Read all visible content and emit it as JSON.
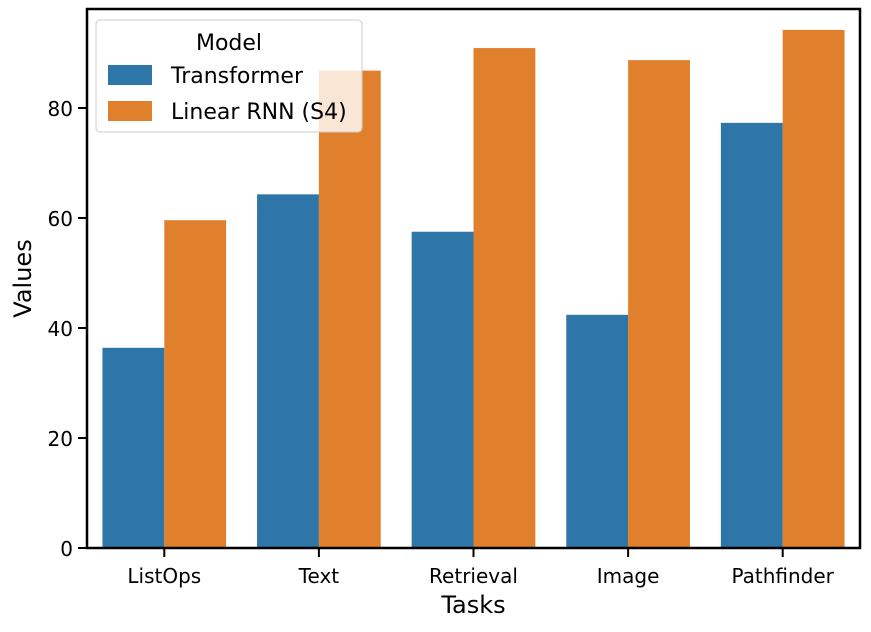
{
  "chart_data": {
    "type": "bar",
    "title": "",
    "xlabel": "Tasks",
    "ylabel": "Values",
    "categories": [
      "ListOps",
      "Text",
      "Retrieval",
      "Image",
      "Pathfinder"
    ],
    "ylim": [
      0,
      98
    ],
    "yticks": [
      0,
      20,
      40,
      60,
      80
    ],
    "grid": false,
    "legend": {
      "title": "Model",
      "position": "top-left"
    },
    "series": [
      {
        "name": "Transformer",
        "color": "#2e75a8",
        "values": [
          36.4,
          64.3,
          57.5,
          42.4,
          77.3
        ]
      },
      {
        "name": "Linear RNN (S4)",
        "color": "#e1802c",
        "values": [
          59.6,
          86.8,
          90.9,
          88.7,
          94.2
        ]
      }
    ]
  }
}
